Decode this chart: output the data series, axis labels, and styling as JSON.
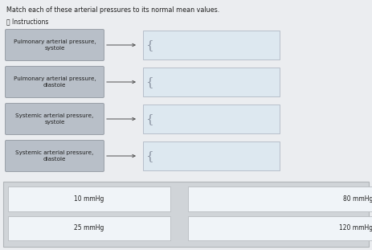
{
  "title": "Match each of these arterial pressures to its normal mean values.",
  "instructions": "ⓘ Instructions",
  "fig_bg": "#e8eaed",
  "upper_bg": "#ebedf0",
  "left_boxes": [
    {
      "label": "Pulmonary arterial pressure,\nsystole"
    },
    {
      "label": "Pulmonary arterial pressure,\ndiastole"
    },
    {
      "label": "Systemic arterial pressure,\nsystole"
    },
    {
      "label": "Systemic arterial pressure,\ndiastole"
    }
  ],
  "left_box_facecolor": "#b8bfc8",
  "left_box_edgecolor": "#9aa0a8",
  "right_drop_facecolor": "#dde8f0",
  "right_drop_edgecolor": "#b0b8c4",
  "bottom_panel_facecolor": "#d0d4d8",
  "bottom_panel_edgecolor": "#b0b4b8",
  "answer_box_facecolor": "#f0f4f8",
  "answer_box_edgecolor": "#b8bcc0",
  "answer_items": [
    {
      "label": "10 mmHg",
      "col": 0,
      "row": 0
    },
    {
      "label": "80 mmHg",
      "col": 1,
      "row": 0
    },
    {
      "label": "25 mmHg",
      "col": 0,
      "row": 1
    },
    {
      "label": "120 mmHg",
      "col": 1,
      "row": 1
    }
  ],
  "arrow_color": "#505050",
  "text_color": "#202020",
  "title_fontsize": 5.8,
  "label_fontsize": 5.2,
  "answer_fontsize": 5.5,
  "instr_fontsize": 5.5
}
